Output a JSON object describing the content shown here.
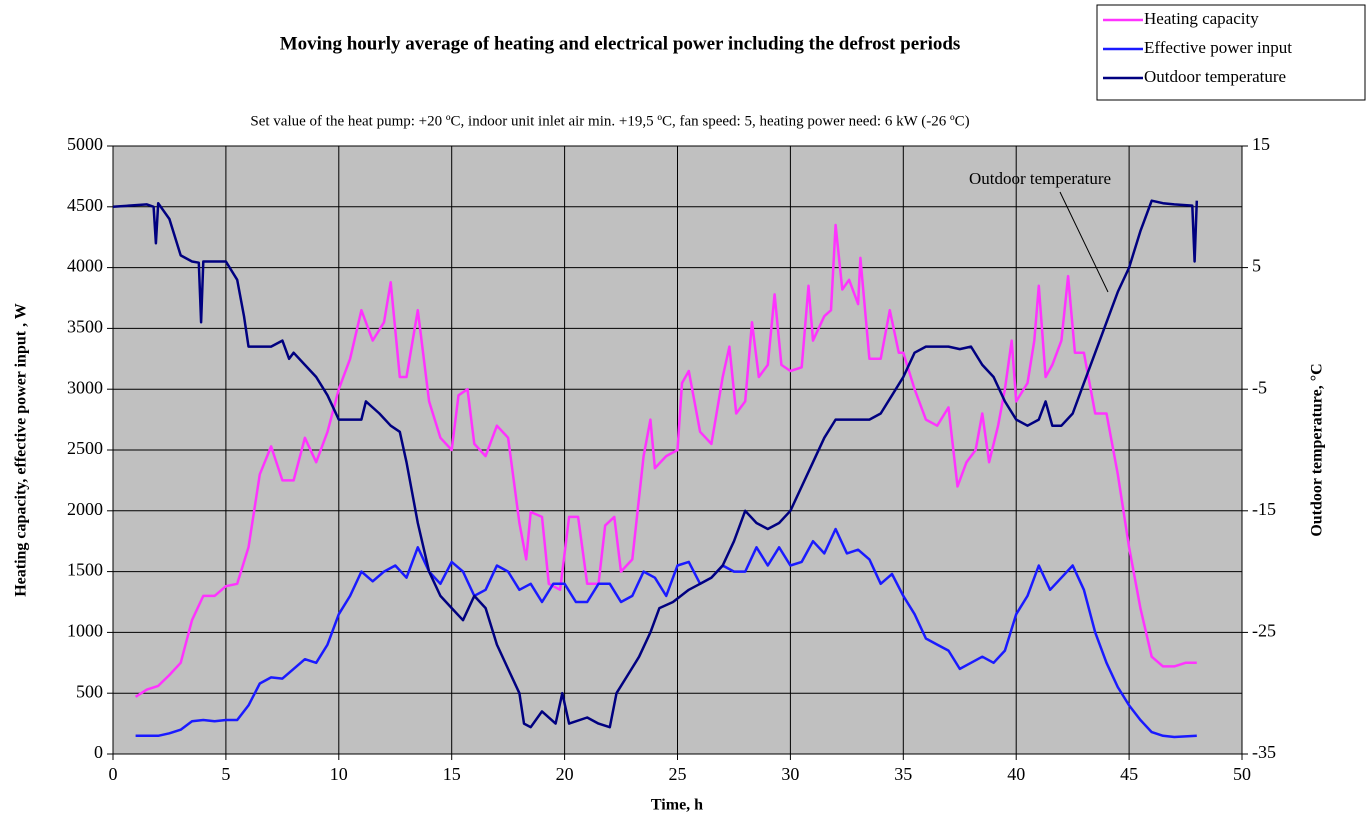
{
  "chart_data": {
    "type": "line",
    "title": "Moving hourly average of heating and electrical power including  the defrost periods",
    "subtitle": "Set value of the heat pump: +20 ºC,  indoor unit inlet air min. +19,5 ºC, fan speed: 5, heating power need: 6 kW (-26 ºC)",
    "xlabel": "Time, h",
    "ylabel": "Heating capacity, effective power input , W",
    "y2label": "Outdoor temperature,  °C",
    "annotations": [
      "Outdoor temperature"
    ],
    "xlim": [
      0,
      50
    ],
    "xticks": [
      0,
      5,
      10,
      15,
      20,
      25,
      30,
      35,
      40,
      45,
      50
    ],
    "ylim": [
      0,
      5000
    ],
    "yticks": [
      0,
      500,
      1000,
      1500,
      2000,
      2500,
      3000,
      3500,
      4000,
      4500,
      5000
    ],
    "y2lim": [
      -35,
      15
    ],
    "y2ticks": [
      -35,
      -25,
      -15,
      -5,
      5,
      15
    ],
    "grid": true,
    "background": "#c0c0c0",
    "series": [
      {
        "name": "Heating capacity",
        "color": "#ff33ff",
        "x": [
          1,
          1.5,
          2,
          2.5,
          3,
          3.5,
          4,
          4.5,
          5,
          5.5,
          6,
          6.5,
          7,
          7.5,
          8,
          8.5,
          9,
          9.5,
          10,
          10.5,
          11,
          11.5,
          12,
          12.3,
          12.7,
          13,
          13.5,
          14,
          14.5,
          15,
          15.3,
          15.7,
          16,
          16.5,
          17,
          17.5,
          18,
          18.3,
          18.5,
          19,
          19.3,
          19.8,
          20.2,
          20.6,
          21,
          21.5,
          21.8,
          22.2,
          22.5,
          23,
          23.5,
          23.8,
          24,
          24.5,
          25,
          25.2,
          25.5,
          26,
          26.5,
          27,
          27.3,
          27.6,
          28,
          28.3,
          28.6,
          29,
          29.3,
          29.6,
          30,
          30.5,
          30.8,
          31,
          31.5,
          31.8,
          32,
          32.3,
          32.6,
          33,
          33.1,
          33.5,
          34,
          34.4,
          34.8,
          35,
          35.5,
          36,
          36.5,
          37,
          37.4,
          37.8,
          38.2,
          38.5,
          38.8,
          39.2,
          39.5,
          39.8,
          40,
          40.5,
          40.8,
          41,
          41.3,
          41.6,
          42,
          42.3,
          42.6,
          43,
          43.5,
          44,
          44.5,
          45,
          45.5,
          46,
          46.5,
          47,
          47.5,
          48
        ],
        "values": [
          470,
          530,
          560,
          650,
          750,
          1100,
          1300,
          1300,
          1380,
          1400,
          1700,
          2300,
          2530,
          2250,
          2250,
          2600,
          2400,
          2650,
          3000,
          3250,
          3650,
          3400,
          3550,
          3880,
          3100,
          3100,
          3650,
          2900,
          2600,
          2500,
          2950,
          3000,
          2550,
          2450,
          2700,
          2600,
          1900,
          1600,
          1990,
          1950,
          1400,
          1350,
          1950,
          1950,
          1400,
          1400,
          1880,
          1950,
          1500,
          1600,
          2450,
          2750,
          2350,
          2450,
          2500,
          3050,
          3150,
          2650,
          2550,
          3100,
          3350,
          2800,
          2900,
          3550,
          3100,
          3200,
          3780,
          3200,
          3150,
          3180,
          3850,
          3400,
          3600,
          3650,
          4350,
          3820,
          3900,
          3700,
          4080,
          3250,
          3250,
          3650,
          3300,
          3300,
          3000,
          2750,
          2700,
          2850,
          2200,
          2400,
          2500,
          2800,
          2400,
          2700,
          3000,
          3400,
          2900,
          3050,
          3400,
          3850,
          3100,
          3200,
          3400,
          3930,
          3300,
          3300,
          2800,
          2800,
          2300,
          1700,
          1200,
          800,
          720,
          720,
          750,
          750
        ]
      },
      {
        "name": "Effective power input",
        "color": "#1a1aff",
        "x": [
          1,
          2,
          2.5,
          3,
          3.5,
          4,
          4.5,
          5,
          5.5,
          6,
          6.5,
          7,
          7.5,
          8,
          8.5,
          9,
          9.5,
          10,
          10.5,
          11,
          11.5,
          12,
          12.5,
          13,
          13.5,
          14,
          14.5,
          15,
          15.5,
          16,
          16.5,
          17,
          17.5,
          18,
          18.5,
          19,
          19.5,
          20,
          20.5,
          21,
          21.5,
          22,
          22.5,
          23,
          23.5,
          24,
          24.5,
          25,
          25.5,
          26,
          26.5,
          27,
          27.5,
          28,
          28.5,
          29,
          29.5,
          30,
          30.5,
          31,
          31.5,
          32,
          32.5,
          33,
          33.5,
          34,
          34.5,
          35,
          35.5,
          36,
          36.5,
          37,
          37.5,
          38,
          38.5,
          39,
          39.5,
          40,
          40.5,
          41,
          41.5,
          42,
          42.5,
          43,
          43.5,
          44,
          44.5,
          45,
          45.5,
          46,
          46.5,
          47,
          48
        ],
        "values": [
          150,
          150,
          170,
          200,
          270,
          280,
          270,
          280,
          280,
          400,
          580,
          630,
          620,
          700,
          780,
          750,
          900,
          1150,
          1300,
          1500,
          1420,
          1500,
          1550,
          1450,
          1700,
          1500,
          1400,
          1580,
          1500,
          1300,
          1350,
          1550,
          1500,
          1350,
          1400,
          1250,
          1400,
          1400,
          1250,
          1250,
          1400,
          1400,
          1250,
          1300,
          1500,
          1450,
          1300,
          1550,
          1580,
          1400,
          1450,
          1550,
          1500,
          1500,
          1700,
          1550,
          1700,
          1550,
          1580,
          1750,
          1650,
          1850,
          1650,
          1680,
          1600,
          1400,
          1480,
          1300,
          1150,
          950,
          900,
          850,
          700,
          750,
          800,
          750,
          850,
          1150,
          1300,
          1550,
          1350,
          1450,
          1550,
          1350,
          1000,
          750,
          550,
          400,
          280,
          180,
          150,
          140,
          150
        ]
      },
      {
        "name": "Outdoor temperature",
        "color": "#000080",
        "axis": "y2",
        "x": [
          0,
          1.5,
          1.8,
          1.9,
          2,
          2.5,
          3,
          3.5,
          3.8,
          3.9,
          4,
          5,
          5.5,
          5.8,
          6,
          7,
          7.5,
          7.8,
          8,
          8.5,
          9,
          9.5,
          10,
          11,
          11.2,
          11.8,
          12.3,
          12.7,
          13,
          13.5,
          14,
          14.5,
          15,
          15.5,
          16,
          16.5,
          17,
          17.5,
          18,
          18.2,
          18.5,
          19,
          19.6,
          19.9,
          20.2,
          21,
          21.5,
          22,
          22.3,
          22.8,
          23.3,
          23.8,
          24.2,
          24.8,
          25.5,
          26,
          26.5,
          27,
          27.5,
          28,
          28.5,
          29,
          29.5,
          30,
          30.5,
          31,
          31.5,
          32,
          33,
          33.5,
          34,
          34.5,
          35,
          35.5,
          36,
          37,
          37.5,
          38,
          38.5,
          39,
          39.5,
          40,
          40.5,
          41,
          41.3,
          41.6,
          42,
          42.5,
          43,
          43.5,
          44,
          44.5,
          45,
          45.5,
          46,
          46.5,
          47,
          47.8,
          47.9,
          48
        ],
        "values": [
          10,
          10.2,
          10,
          7,
          10.3,
          9,
          6,
          5.5,
          5.4,
          0.5,
          5.5,
          5.5,
          4,
          1,
          -1.5,
          -1.5,
          -1,
          -2.5,
          -2,
          -3,
          -4,
          -5.5,
          -7.5,
          -7.5,
          -6,
          -7,
          -8,
          -8.5,
          -11,
          -16,
          -20,
          -22,
          -23,
          -24,
          -22,
          -23,
          -26,
          -28,
          -30,
          -32.5,
          -32.8,
          -31.5,
          -32.5,
          -30,
          -32.5,
          -32,
          -32.5,
          -32.8,
          -30,
          -28.5,
          -27,
          -25,
          -23,
          -22.5,
          -21.5,
          -21,
          -20.5,
          -19.5,
          -17.5,
          -15,
          -16,
          -16.5,
          -16,
          -15,
          -13,
          -11,
          -9,
          -7.5,
          -7.5,
          -7.5,
          -7,
          -5.5,
          -4,
          -2,
          -1.5,
          -1.5,
          -1.7,
          -1.5,
          -3,
          -4,
          -6,
          -7.5,
          -8,
          -7.5,
          -6,
          -8,
          -8,
          -7,
          -4.5,
          -2,
          0.5,
          3,
          5,
          8,
          10.5,
          10.3,
          10.2,
          10.1,
          5.5,
          10.5
        ]
      }
    ]
  }
}
